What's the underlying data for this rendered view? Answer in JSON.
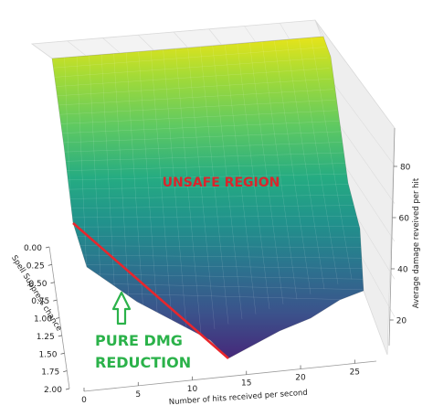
{
  "chart_data": {
    "type": "surface3d",
    "colormap": "viridis",
    "grid": true,
    "x_axis": {
      "label": "Number of hits received per second",
      "ticks": [
        "0",
        "5",
        "10",
        "15",
        "20",
        "25"
      ],
      "range": [
        0,
        27
      ]
    },
    "y_axis": {
      "label": "Spell Suppress chance",
      "ticks": [
        "0.00",
        "0.25",
        "0.50",
        "0.75",
        "1.00",
        "1.25",
        "1.50",
        "1.75",
        "2.00"
      ],
      "range": [
        0,
        2
      ]
    },
    "z_axis": {
      "label": "Average damage reveived per hit",
      "ticks": [
        "20",
        "40",
        "60",
        "80"
      ],
      "range": [
        10,
        95
      ]
    },
    "surface_corners": [
      {
        "x": 0,
        "y": 0,
        "z": 92
      },
      {
        "x": 27,
        "y": 0,
        "z": 88
      },
      {
        "x": 0,
        "y": 2,
        "z": 38
      },
      {
        "x": 12.5,
        "y": 2,
        "z": 12
      },
      {
        "x": 27,
        "y": 2,
        "z": 40
      }
    ],
    "annotations": {
      "unsafe": "UNSAFE REGION",
      "pure_line1": "PURE DMG",
      "pure_line2": "REDUCTION"
    },
    "boundary_line": {
      "color": "#e8262c",
      "from": {
        "x": 0,
        "y": 0.6
      },
      "to": {
        "x": 12.5,
        "y": 2
      }
    },
    "arrow_color": "#2bb24a"
  }
}
